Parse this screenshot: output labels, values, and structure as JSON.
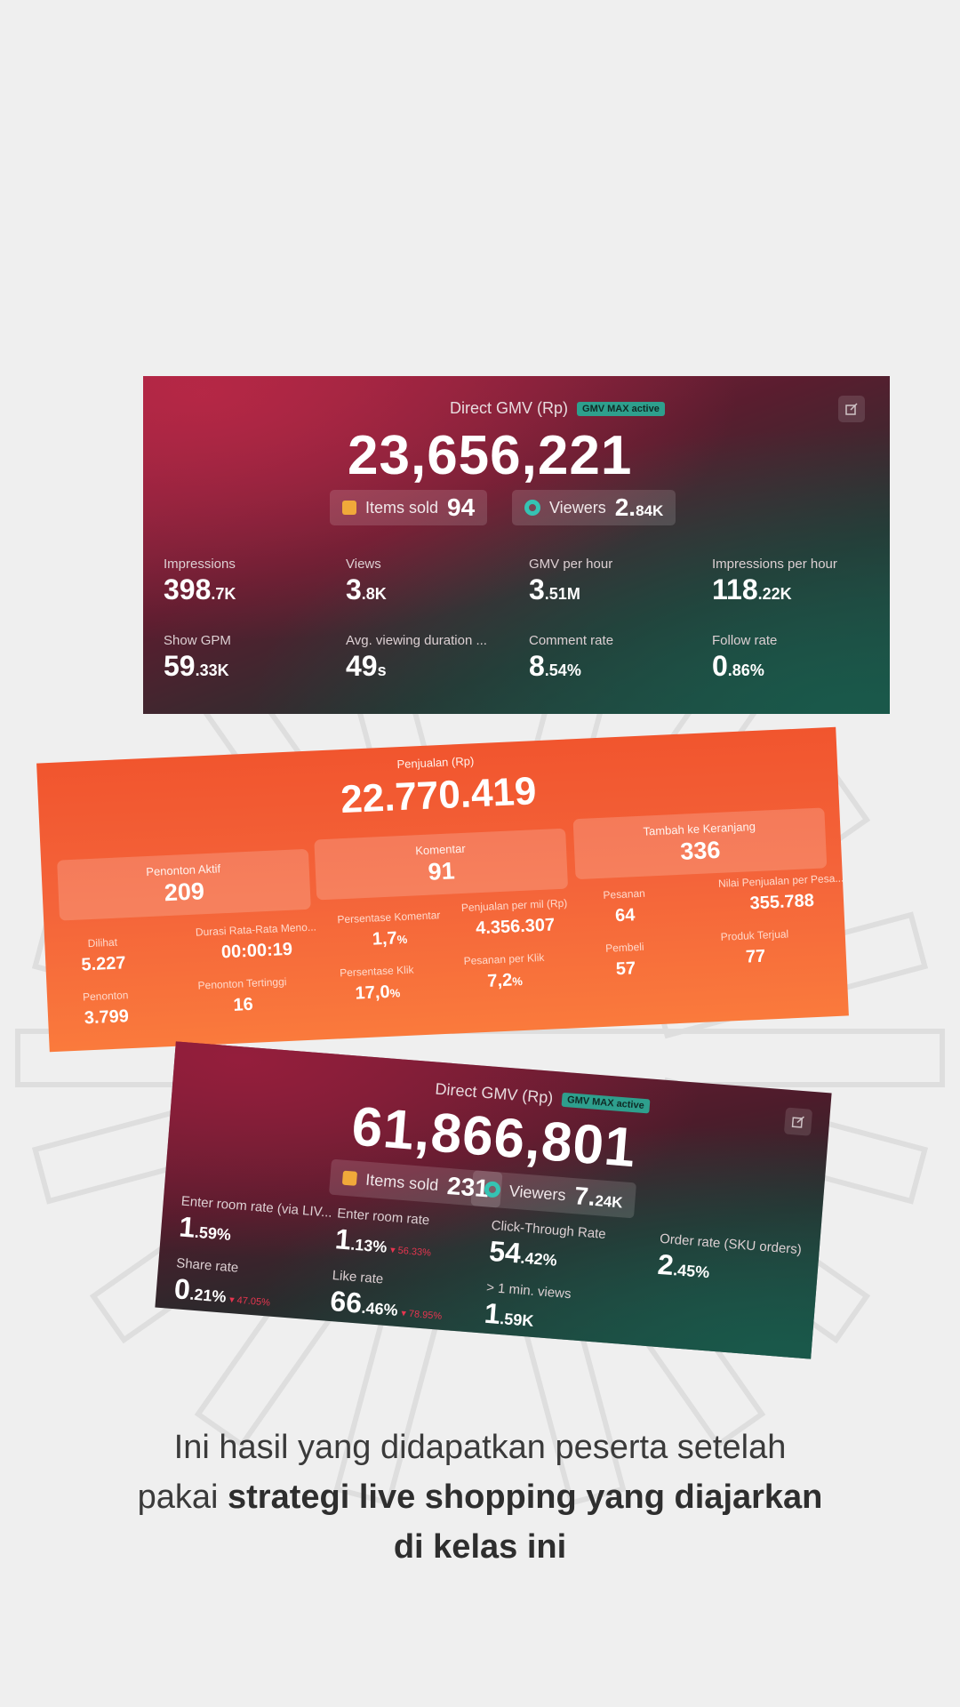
{
  "card1": {
    "title": "Direct GMV (Rp)",
    "badge": "GMV MAX active",
    "value": "23,656,221",
    "items_sold_label": "Items sold",
    "items_sold_value": "94",
    "viewers_label": "Viewers",
    "viewers_value": "2.",
    "viewers_suffix": "84K",
    "stats": [
      {
        "label": "Impressions",
        "main": "398",
        "suffix": ".7K"
      },
      {
        "label": "Views",
        "main": "3",
        "suffix": ".8K"
      },
      {
        "label": "GMV per hour",
        "main": "3",
        "suffix": ".51M"
      },
      {
        "label": "Impressions per hour",
        "main": "118",
        "suffix": ".22K"
      },
      {
        "label": "Show GPM",
        "main": "59",
        "suffix": ".33K"
      },
      {
        "label": "Avg. viewing duration ...",
        "main": "49",
        "suffix": "s"
      },
      {
        "label": "Comment rate",
        "main": "8",
        "suffix": ".54%"
      },
      {
        "label": "Follow rate",
        "main": "0",
        "suffix": ".86%"
      }
    ]
  },
  "card2": {
    "title": "Penjualan (Rp)",
    "value": "22.770.419",
    "boxes": [
      {
        "label": "Penonton Aktif",
        "value": "209"
      },
      {
        "label": "Komentar",
        "value": "91"
      },
      {
        "label": "Tambah ke Keranjang",
        "value": "336"
      }
    ],
    "stats": [
      {
        "label": "Dilihat",
        "main": "5.227",
        "suffix": ""
      },
      {
        "label": "Durasi Rata-Rata Meno...",
        "main": "00:00:19",
        "suffix": ""
      },
      {
        "label": "Persentase Komentar",
        "main": "1,7",
        "suffix": "%"
      },
      {
        "label": "Penjualan per mil (Rp)",
        "main": "4.356.307",
        "suffix": ""
      },
      {
        "label": "Pesanan",
        "main": "64",
        "suffix": ""
      },
      {
        "label": "Nilai Penjualan per Pesa...",
        "main": "355.788",
        "suffix": ""
      },
      {
        "label": "Penonton",
        "main": "3.799",
        "suffix": ""
      },
      {
        "label": "Penonton Tertinggi",
        "main": "16",
        "suffix": ""
      },
      {
        "label": "Persentase Klik",
        "main": "17,0",
        "suffix": "%"
      },
      {
        "label": "Pesanan per Klik",
        "main": "7,2",
        "suffix": "%"
      },
      {
        "label": "Pembeli",
        "main": "57",
        "suffix": ""
      },
      {
        "label": "Produk Terjual",
        "main": "77",
        "suffix": ""
      }
    ]
  },
  "card3": {
    "title": "Direct GMV (Rp)",
    "badge": "GMV MAX active",
    "value": "61,866,801",
    "items_sold_label": "Items sold",
    "items_sold_value": "231",
    "viewers_label": "Viewers",
    "viewers_value": "7.",
    "viewers_suffix": "24K",
    "stats": [
      {
        "label": "Enter room rate (via LIV...",
        "main": "1",
        "suffix": ".59%",
        "delta": ""
      },
      {
        "label": "Enter room rate",
        "main": "1",
        "suffix": ".13%",
        "delta": "▾ 56.33%"
      },
      {
        "label": "Click-Through Rate",
        "main": "54",
        "suffix": ".42%",
        "delta": ""
      },
      {
        "label": "Order rate (SKU orders)",
        "main": "2",
        "suffix": ".45%",
        "delta": ""
      },
      {
        "label": "Share rate",
        "main": "0",
        "suffix": ".21%",
        "delta": "▾ 47.05%"
      },
      {
        "label": "Like rate",
        "main": "66",
        "suffix": ".46%",
        "delta": "▾ 78.95%"
      },
      {
        "label": "> 1 min. views",
        "main": "1",
        "suffix": ".59K",
        "delta": ""
      }
    ]
  },
  "caption": {
    "line1": "Ini hasil yang didapatkan peserta setelah",
    "line2_plain": "pakai ",
    "line2_bold": "strategi live shopping yang diajarkan",
    "line3_bold": "di kelas ini"
  }
}
